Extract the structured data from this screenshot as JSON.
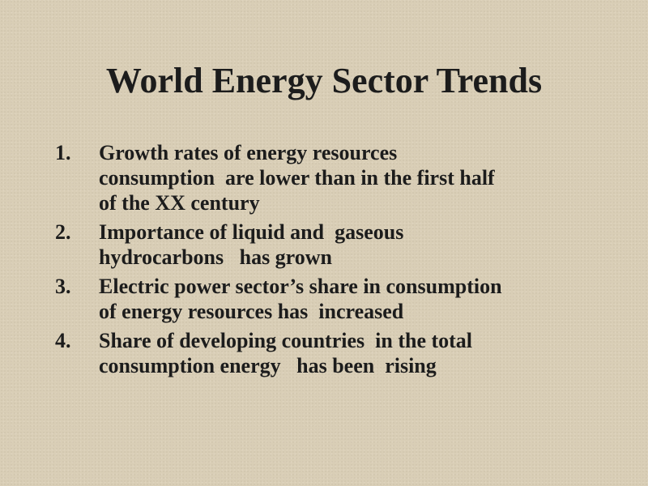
{
  "title": "World Energy Sector Trends",
  "items": [
    {
      "number": "1.",
      "lines": [
        "Growth rates of energy resources",
        "consumption  are lower than in the first half",
        "of the XX century"
      ]
    },
    {
      "number": "2.",
      "lines": [
        "Importance of liquid and  gaseous",
        "hydrocarbons   has grown"
      ]
    },
    {
      "number": "3.",
      "lines": [
        "Electric power sector’s share in consumption",
        "of energy resources has  increased"
      ]
    },
    {
      "number": "4.",
      "lines": [
        "Share of developing countries  in the total",
        "consumption energy   has been  rising"
      ]
    }
  ]
}
